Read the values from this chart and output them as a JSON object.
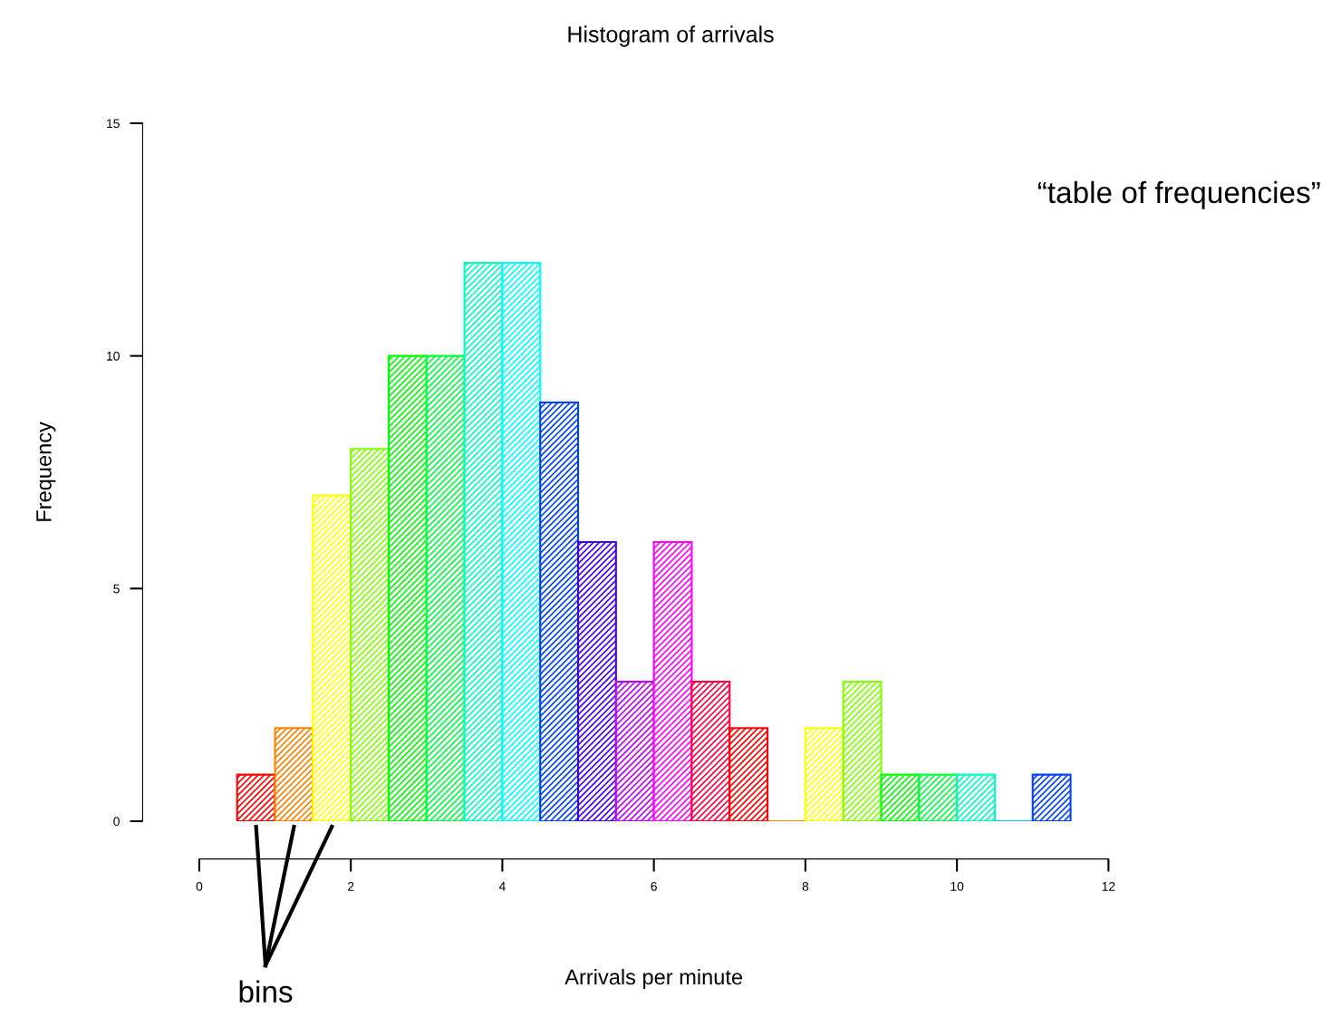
{
  "chart_data": {
    "type": "histogram",
    "title": "Histogram of arrivals",
    "xlabel": "Arrivals per minute",
    "ylabel": "Frequency",
    "bins": [
      0.5,
      1,
      1.5,
      2,
      2.5,
      3,
      3.5,
      4,
      4.5,
      5,
      5.5,
      6,
      6.5,
      7,
      7.5,
      8,
      8.5,
      9,
      9.5,
      10,
      10.5,
      11,
      11.5
    ],
    "values": [
      1,
      2,
      7,
      8,
      10,
      10,
      12,
      12,
      9,
      6,
      3,
      6,
      3,
      2,
      0,
      2,
      3,
      1,
      1,
      1,
      0,
      1
    ],
    "colors": [
      "#ff0000",
      "#ff8000",
      "#ffff00",
      "#80ff00",
      "#00ff00",
      "#00ff40",
      "#00ffbf",
      "#00ffff",
      "#0040ff",
      "#4000ff",
      "#bf00ff",
      "#ff00ff",
      "#ff0040",
      "#ff0000",
      "#ff8000",
      "#ffff00",
      "#80ff00",
      "#00ff00",
      "#00ff40",
      "#00ffbf",
      "#00bfff",
      "#0040ff"
    ],
    "xlim": [
      0,
      12
    ],
    "xticks": [
      0,
      2,
      4,
      6,
      8,
      10,
      12
    ],
    "ylim": [
      0,
      15
    ],
    "yticks": [
      0,
      5,
      10,
      15
    ],
    "grid": false,
    "annotations": [
      "“table of frequencies”",
      "bins"
    ]
  }
}
